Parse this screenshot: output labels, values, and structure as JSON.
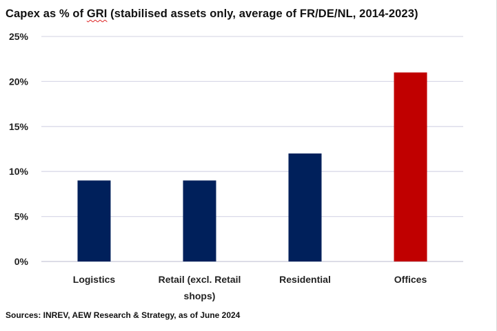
{
  "title": {
    "prefix": "Capex as % of ",
    "gri": "GRI",
    "suffix": " (stabilised assets only, average of FR/DE/NL, 2014-2023)"
  },
  "source": "Sources: INREV, AEW Research & Strategy, as of June 2024",
  "colors": {
    "bar_default": "#00205b",
    "bar_highlight": "#c00000",
    "gridline": "#d9d9e8",
    "axis": "#c8c8d8"
  },
  "chart_data": {
    "type": "bar",
    "title": "Capex as % of GRI (stabilised assets only, average of FR/DE/NL, 2014-2023)",
    "xlabel": "",
    "ylabel": "",
    "categories": [
      [
        "Logistics"
      ],
      [
        "Retail (excl. Retail",
        "shops)"
      ],
      [
        "Residential"
      ],
      [
        "Offices"
      ]
    ],
    "values": [
      9,
      9,
      12,
      21
    ],
    "highlight": [
      false,
      false,
      false,
      true
    ],
    "ylim": [
      0,
      25
    ],
    "yticks": [
      0,
      5,
      10,
      15,
      20,
      25
    ],
    "ytick_labels": [
      "0%",
      "5%",
      "10%",
      "15%",
      "20%",
      "25%"
    ],
    "grid": true,
    "legend": "none"
  }
}
